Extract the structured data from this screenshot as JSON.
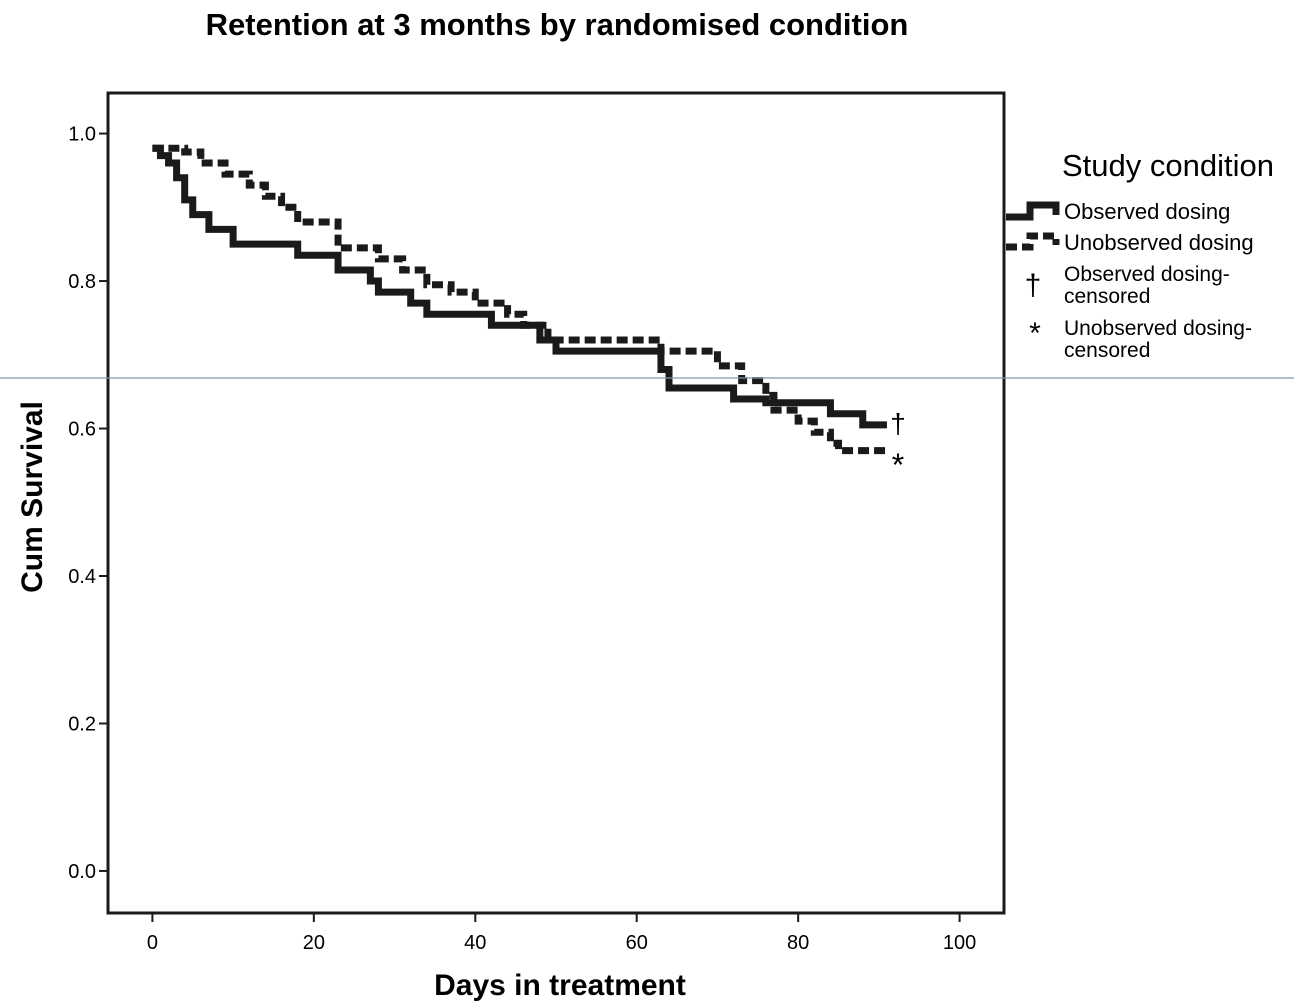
{
  "chart_data": {
    "type": "line",
    "title": "Retention at 3 months by randomised condition",
    "xlabel": "Days in treatment",
    "ylabel": "Cum Survival",
    "xlim": [
      -5.5,
      105.5
    ],
    "ylim": [
      -0.057,
      1.055
    ],
    "xticks": [
      0,
      20,
      40,
      60,
      80,
      100
    ],
    "xtick_labels": [
      "0",
      "20",
      "40",
      "60",
      "80",
      "100"
    ],
    "yticks": [
      0.0,
      0.2,
      0.4,
      0.6,
      0.8,
      1.0
    ],
    "ytick_labels": [
      "0.0",
      "0.2",
      "0.4",
      "0.6",
      "0.8",
      "1.0"
    ],
    "grid": false,
    "legend": {
      "title": "Study condition",
      "placement": "right",
      "entries": [
        {
          "label": "Observed dosing",
          "lines": [
            "Observed dosing"
          ],
          "symbol": "solid"
        },
        {
          "label": "Unobserved dosing",
          "lines": [
            "Unobserved dosing"
          ],
          "symbol": "dashed"
        },
        {
          "label": "Observed dosing-censored",
          "lines": [
            "Observed dosing-",
            "censored"
          ],
          "symbol": "†"
        },
        {
          "label": "Unobserved dosing-censored",
          "lines": [
            "Unobserved dosing-",
            "censored"
          ],
          "symbol": "*"
        }
      ]
    },
    "series": [
      {
        "name": "Observed dosing",
        "style": "solid",
        "color": "#1a1a1a",
        "x": [
          0,
          1,
          2,
          3,
          4,
          5,
          7,
          10,
          18,
          23,
          27,
          28,
          32,
          34,
          42,
          48,
          50,
          63,
          64,
          72,
          76,
          84,
          88,
          91
        ],
        "y": [
          0.98,
          0.97,
          0.96,
          0.94,
          0.91,
          0.89,
          0.87,
          0.85,
          0.835,
          0.815,
          0.8,
          0.785,
          0.77,
          0.755,
          0.74,
          0.72,
          0.705,
          0.68,
          0.655,
          0.64,
          0.635,
          0.62,
          0.605,
          0.605
        ]
      },
      {
        "name": "Unobserved dosing",
        "style": "dashed",
        "color": "#1a1a1a",
        "x": [
          0,
          4,
          6,
          9,
          12,
          14,
          16,
          18,
          23,
          28,
          31,
          34,
          37,
          40,
          44,
          46,
          49,
          63,
          70,
          73,
          76,
          77,
          80,
          82,
          84,
          85,
          88,
          91
        ],
        "y": [
          0.98,
          0.975,
          0.96,
          0.945,
          0.93,
          0.915,
          0.9,
          0.88,
          0.845,
          0.83,
          0.815,
          0.795,
          0.785,
          0.77,
          0.755,
          0.74,
          0.72,
          0.705,
          0.685,
          0.665,
          0.645,
          0.625,
          0.61,
          0.595,
          0.58,
          0.57,
          0.57,
          0.57
        ]
      }
    ],
    "censored": [
      {
        "series": "Observed dosing",
        "symbol": "†",
        "x": 92,
        "y": 0.605
      },
      {
        "series": "Unobserved dosing",
        "symbol": "*",
        "x": 92,
        "y": 0.56
      }
    ]
  }
}
